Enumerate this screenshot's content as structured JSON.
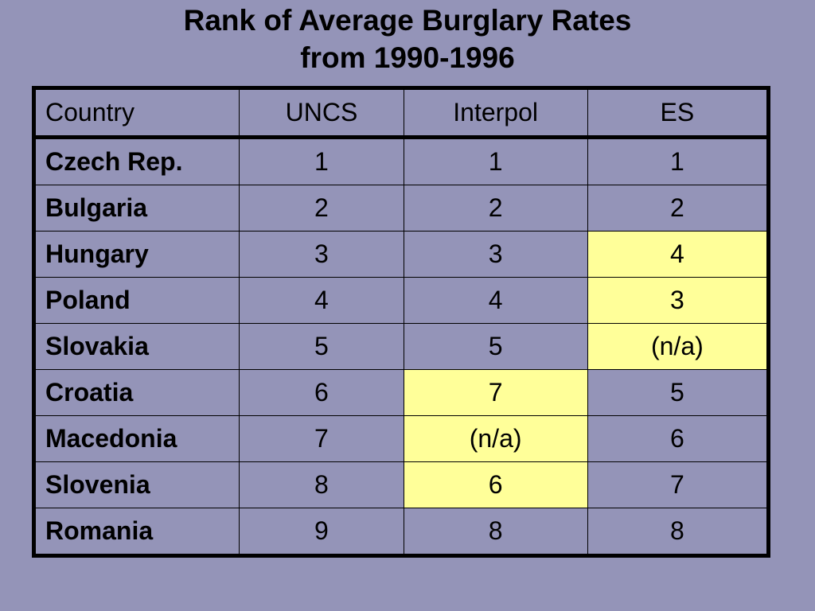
{
  "title": {
    "line1": "Rank of Average Burglary Rates",
    "line2": "from 1990-1996"
  },
  "table": {
    "headers": [
      "Country",
      "UNCS",
      "Interpol",
      "ES"
    ],
    "rows": [
      {
        "country": "Czech Rep.",
        "uncs": "1",
        "interpol": "1",
        "es": "1"
      },
      {
        "country": "Bulgaria",
        "uncs": "2",
        "interpol": "2",
        "es": "2"
      },
      {
        "country": "Hungary",
        "uncs": "3",
        "interpol": "3",
        "es": "4"
      },
      {
        "country": "Poland",
        "uncs": "4",
        "interpol": "4",
        "es": "3"
      },
      {
        "country": "Slovakia",
        "uncs": "5",
        "interpol": "5",
        "es": "(n/a)"
      },
      {
        "country": "Croatia",
        "uncs": "6",
        "interpol": "7",
        "es": "5"
      },
      {
        "country": "Macedonia",
        "uncs": "7",
        "interpol": "(n/a)",
        "es": "6"
      },
      {
        "country": "Slovenia",
        "uncs": "8",
        "interpol": "6",
        "es": "7"
      },
      {
        "country": "Romania",
        "uncs": "9",
        "interpol": "8",
        "es": "8"
      }
    ],
    "highlight_color": "#ffff99",
    "background_color": "#9494b8"
  }
}
